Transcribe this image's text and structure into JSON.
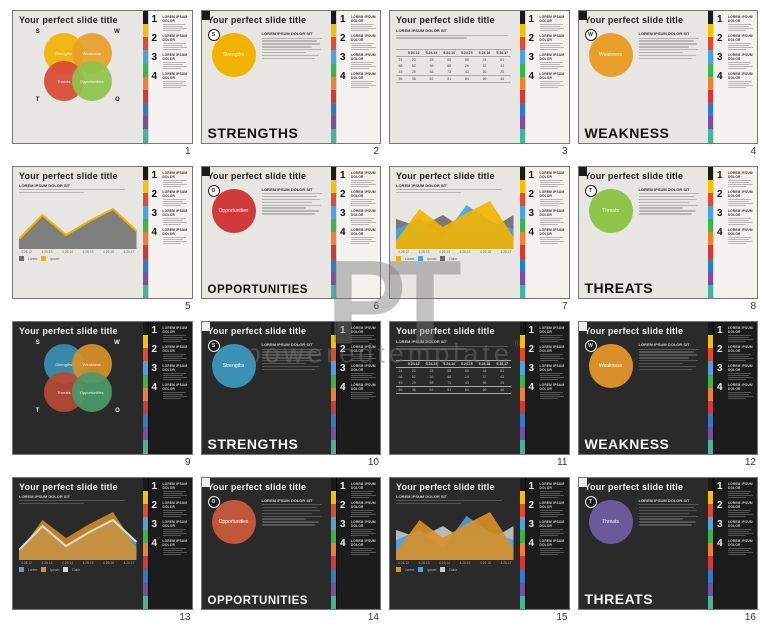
{
  "watermark": {
    "logo": "PT",
    "text": "poweredtemplate",
    "reg": "®"
  },
  "rainbow_colors": [
    "#1a1a1a",
    "#f2c200",
    "#e64a2e",
    "#4aa3df",
    "#3bb44a",
    "#f08030",
    "#d13a3a",
    "#2e7bbf",
    "#7a4fa0",
    "#44b59a"
  ],
  "slide_title": "Your perfect slide title",
  "sidebar": {
    "items": [
      {
        "n": "1",
        "h": "LOREM IPSUM DOLOR"
      },
      {
        "n": "2",
        "h": "LOREM IPSUM DOLOR"
      },
      {
        "n": "3",
        "h": "LOREM IPSUM DOLOR"
      },
      {
        "n": "4",
        "h": "LOREM IPSUM DOLOR"
      }
    ]
  },
  "swot": {
    "s_label": "Strengths",
    "w_label": "Weakness",
    "t_label": "Threats",
    "o_label": "Opportunities",
    "corner_s": "S",
    "corner_w": "W",
    "corner_t": "T",
    "corner_o": "O"
  },
  "bigwords": {
    "strengths": "STRENGTHS",
    "opportunities": "OPPORTUNITIES",
    "weakness": "WEAKNESS",
    "threats": "THREATS"
  },
  "colors": {
    "light": {
      "s": "#f2b200",
      "w": "#e8a02a",
      "t": "#d84a34",
      "o": "#8fc44a",
      "opp_circle": "#d13a3a",
      "threat_circle": "#8fc44a",
      "chart1_line": "#f2b200",
      "chart1_fill": "#6b6b6b",
      "chart2_a": "#f2b200",
      "chart2_b": "#4aa3df",
      "chart2_c": "#6b6b6b"
    },
    "dark": {
      "s": "#3a91b5",
      "w": "#d99028",
      "t": "#b84a34",
      "o": "#4a9a6a",
      "opp_circle": "#c0563a",
      "threat_circle": "#6a5a9a",
      "weak_circle": "#d99028",
      "chart1_line": "#d9d9d9",
      "chart1_fill": "#4aa3df",
      "chart1_fill2": "#d99028",
      "chart2_a": "#d99028",
      "chart2_b": "#4aa3df",
      "chart2_c": "#c9c9c9"
    }
  },
  "table": {
    "cols": [
      "",
      "5.24.12",
      "5.24.13",
      "5.24.14",
      "5.24.15",
      "5.24.16",
      "5.24.17"
    ],
    "rows": [
      [
        "24",
        "23",
        "25",
        "65",
        "68",
        "44",
        "61"
      ],
      [
        "68",
        "52",
        "39",
        "88",
        "29",
        "37",
        "43"
      ],
      [
        "45",
        "29",
        "58",
        "73",
        "43",
        "56",
        "25"
      ],
      [
        "56",
        "38",
        "52",
        "51",
        "84",
        "69",
        "46"
      ]
    ]
  },
  "xaxis_labels": [
    "4.26.12",
    "4.26.13",
    "4.26.14",
    "4.26.15",
    "4.26.16",
    "4.26.17"
  ],
  "legend_labels": [
    "Lorem",
    "Ipsum",
    "Dolor"
  ],
  "chart_line": {
    "points": [
      10,
      34,
      14,
      28,
      40,
      18
    ]
  },
  "chart_area": {
    "a": [
      8,
      40,
      22,
      36,
      48,
      12
    ],
    "b": [
      20,
      30,
      12,
      44,
      28,
      20
    ],
    "c": [
      30,
      22,
      34,
      18,
      20,
      34
    ]
  },
  "body_head": "LOREM IPSUM DOLOR SIT"
}
